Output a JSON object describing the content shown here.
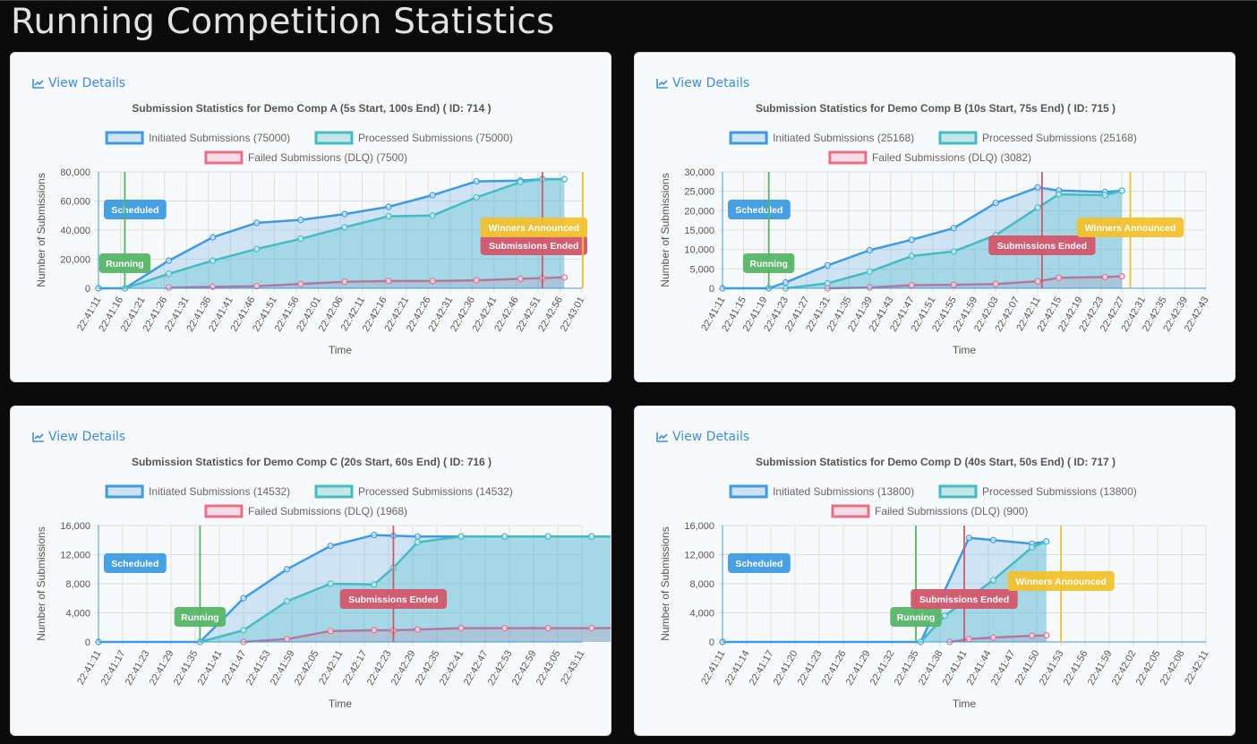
{
  "page": {
    "title": "Running Competition Statistics"
  },
  "colors": {
    "initiated": "#3d9be3",
    "initiated_fill": "rgba(61,155,227,0.22)",
    "processed": "#45bcc2",
    "processed_fill": "rgba(69,188,194,0.30)",
    "failed": "#e86f8a",
    "failed_line": "#b07aa0",
    "scheduled": "#3d9be3",
    "running": "#56b668",
    "ended": "#d2566a",
    "announced": "#f2c22e",
    "grid": "#dedede"
  },
  "view_details_label": "View Details",
  "chart_data": [
    {
      "type": "line",
      "title": "Submission Statistics for Demo Comp A (5s Start, 100s End) ( ID: 714 )",
      "xlabel": "Time",
      "ylabel": "Number of Submissions",
      "ylim": [
        0,
        80000
      ],
      "y_ticks": [
        "0",
        "20,000",
        "40,000",
        "60,000",
        "80,000"
      ],
      "x_ticks": [
        "22:41:11",
        "22:41:16",
        "22:41:21",
        "22:41:26",
        "22:41:31",
        "22:41:36",
        "22:41:41",
        "22:41:46",
        "22:41:51",
        "22:41:56",
        "22:42:01",
        "22:42:06",
        "22:42:11",
        "22:42:16",
        "22:42:21",
        "22:42:26",
        "22:42:31",
        "22:42:36",
        "22:42:41",
        "22:42:46",
        "22:42:51",
        "22:42:56",
        "22:43:01"
      ],
      "legend": [
        "Initiated Submissions (75000)",
        "Processed Submissions (75000)",
        "Failed Submissions (DLQ) (7500)"
      ],
      "series": [
        {
          "name": "Initiated Submissions (75000)",
          "x": [
            0,
            6,
            16,
            26,
            36,
            46,
            56,
            66,
            76,
            86,
            96,
            101,
            106
          ],
          "y": [
            0,
            0,
            19000,
            35000,
            45000,
            47000,
            51000,
            56000,
            64000,
            73500,
            74000,
            75000,
            75000
          ]
        },
        {
          "name": "Processed Submissions (75000)",
          "x": [
            6,
            16,
            26,
            36,
            46,
            56,
            66,
            76,
            86,
            96,
            101,
            106
          ],
          "y": [
            0,
            10000,
            19000,
            27000,
            34000,
            42000,
            49500,
            50000,
            62500,
            73000,
            75000,
            75000
          ]
        },
        {
          "name": "Failed Submissions (DLQ) (7500)",
          "x": [
            16,
            26,
            36,
            46,
            56,
            66,
            76,
            86,
            96,
            101,
            106
          ],
          "y": [
            500,
            1000,
            1500,
            3000,
            4500,
            5000,
            5000,
            5500,
            6500,
            7000,
            7500
          ]
        }
      ],
      "markers": [
        {
          "label": "Scheduled",
          "x": 0,
          "kind": "scheduled",
          "line": false
        },
        {
          "label": "Running",
          "x": 6,
          "kind": "running",
          "line": true
        },
        {
          "label": "Submissions Ended",
          "x": 101,
          "kind": "ended",
          "line": true
        },
        {
          "label": "Winners Announced",
          "x": 111,
          "kind": "announced",
          "line": true
        }
      ]
    },
    {
      "type": "line",
      "title": "Submission Statistics for Demo Comp B (10s Start, 75s End) ( ID: 715 )",
      "xlabel": "Time",
      "ylabel": "Number of Submissions",
      "ylim": [
        0,
        30000
      ],
      "y_ticks": [
        "0",
        "5,000",
        "10,000",
        "15,000",
        "20,000",
        "25,000",
        "30,000"
      ],
      "x_ticks": [
        "22:41:11",
        "22:41:15",
        "22:41:19",
        "22:41:23",
        "22:41:27",
        "22:41:31",
        "22:41:35",
        "22:41:39",
        "22:41:43",
        "22:41:47",
        "22:41:51",
        "22:41:55",
        "22:41:59",
        "22:42:03",
        "22:42:07",
        "22:42:11",
        "22:42:15",
        "22:42:19",
        "22:42:23",
        "22:42:27",
        "22:42:31",
        "22:42:35",
        "22:42:39",
        "22:42:43"
      ],
      "legend": [
        "Initiated Submissions (25168)",
        "Processed Submissions (25168)",
        "Failed Submissions (DLQ) (3082)"
      ],
      "series": [
        {
          "name": "Initiated Submissions (25168)",
          "x": [
            0,
            11,
            15,
            25,
            35,
            45,
            55,
            65,
            75,
            80,
            91,
            95
          ],
          "y": [
            0,
            0,
            1500,
            5900,
            9800,
            12500,
            15500,
            22000,
            26000,
            25200,
            24800,
            25168
          ]
        },
        {
          "name": "Processed Submissions (25168)",
          "x": [
            15,
            25,
            35,
            45,
            55,
            65,
            75,
            80,
            91,
            95
          ],
          "y": [
            0,
            1300,
            4300,
            8300,
            9500,
            13700,
            20800,
            24200,
            24000,
            25168
          ]
        },
        {
          "name": "Failed Submissions (DLQ) (3082)",
          "x": [
            25,
            35,
            45,
            55,
            65,
            75,
            80,
            91,
            95
          ],
          "y": [
            0,
            200,
            800,
            900,
            1100,
            1800,
            2700,
            2900,
            3082
          ]
        }
      ],
      "markers": [
        {
          "label": "Scheduled",
          "x": 0,
          "kind": "scheduled",
          "line": false
        },
        {
          "label": "Running",
          "x": 11,
          "kind": "running",
          "line": true
        },
        {
          "label": "Submissions Ended",
          "x": 76,
          "kind": "ended",
          "line": true
        },
        {
          "label": "Winners Announced",
          "x": 97,
          "kind": "announced",
          "line": true
        }
      ]
    },
    {
      "type": "line",
      "title": "Submission Statistics for Demo Comp C (20s Start, 60s End) ( ID: 716 )",
      "xlabel": "Time",
      "ylabel": "Number of Submissions",
      "ylim": [
        0,
        16000
      ],
      "y_ticks": [
        "0",
        "4,000",
        "8,000",
        "12,000",
        "16,000"
      ],
      "x_ticks": [
        "22:41:11",
        "22:41:17",
        "22:41:23",
        "22:41:29",
        "22:41:35",
        "22:41:41",
        "22:41:47",
        "22:41:53",
        "22:41:59",
        "22:42:05",
        "22:42:11",
        "22:42:17",
        "22:42:23",
        "22:42:29",
        "22:42:35",
        "22:42:41",
        "22:42:47",
        "22:42:53",
        "22:42:59",
        "22:43:05",
        "22:43:11"
      ],
      "legend": [
        "Initiated Submissions (14532)",
        "Processed Submissions (14532)",
        "Failed Submissions (DLQ) (1968)"
      ],
      "series": [
        {
          "name": "Initiated Submissions (14532)",
          "x": [
            0,
            21,
            30,
            39,
            48,
            57,
            61,
            66,
            75,
            84,
            93,
            102,
            111,
            120
          ],
          "y": [
            0,
            0,
            6000,
            10000,
            13200,
            14700,
            14600,
            14500,
            14500,
            14500,
            14500,
            14500,
            14500,
            14500
          ]
        },
        {
          "name": "Processed Submissions (14532)",
          "x": [
            21,
            30,
            39,
            48,
            57,
            61,
            66,
            75,
            84,
            93,
            102,
            111,
            120
          ],
          "y": [
            0,
            1600,
            5600,
            8000,
            7900,
            10200,
            13700,
            14500,
            14500,
            14500,
            14500,
            14500,
            14500
          ]
        },
        {
          "name": "Failed Submissions (DLQ) (1968)",
          "x": [
            30,
            39,
            48,
            57,
            61,
            66,
            75,
            84,
            93,
            102,
            111,
            120
          ],
          "y": [
            0,
            400,
            1500,
            1600,
            1600,
            1700,
            1900,
            1900,
            1900,
            1900,
            1968,
            1968
          ]
        }
      ],
      "markers": [
        {
          "label": "Scheduled",
          "x": 0,
          "kind": "scheduled",
          "line": false
        },
        {
          "label": "Running",
          "x": 21,
          "kind": "running",
          "line": true
        },
        {
          "label": "Submissions Ended",
          "x": 61,
          "kind": "ended",
          "line": true
        }
      ]
    },
    {
      "type": "line",
      "title": "Submission Statistics for Demo Comp D (40s Start, 50s End) ( ID: 717 )",
      "xlabel": "Time",
      "ylabel": "Number of Submissions",
      "ylim": [
        0,
        16000
      ],
      "y_ticks": [
        "0",
        "4,000",
        "8,000",
        "12,000",
        "16,000"
      ],
      "x_ticks": [
        "22:41:11",
        "22:41:14",
        "22:41:17",
        "22:41:20",
        "22:41:23",
        "22:41:26",
        "22:41:29",
        "22:41:32",
        "22:41:35",
        "22:41:38",
        "22:41:41",
        "22:41:44",
        "22:41:47",
        "22:41:50",
        "22:41:53",
        "22:41:56",
        "22:41:59",
        "22:42:02",
        "22:42:05",
        "22:42:08",
        "22:42:11"
      ],
      "legend": [
        "Initiated Submissions (13800)",
        "Processed Submissions (13800)",
        "Failed Submissions (DLQ) (900)"
      ],
      "series": [
        {
          "name": "Initiated Submissions (13800)",
          "x": [
            0,
            41,
            51,
            56,
            64,
            67
          ],
          "y": [
            0,
            0,
            14300,
            14000,
            13500,
            13800
          ]
        },
        {
          "name": "Processed Submissions (13800)",
          "x": [
            41,
            46,
            56,
            64,
            67
          ],
          "y": [
            0,
            3600,
            8500,
            13000,
            13800
          ]
        },
        {
          "name": "Failed Submissions (DLQ) (900)",
          "x": [
            47,
            51,
            56,
            64,
            67
          ],
          "y": [
            0,
            400,
            600,
            850,
            900
          ]
        }
      ],
      "markers": [
        {
          "label": "Scheduled",
          "x": 0,
          "kind": "scheduled",
          "line": false
        },
        {
          "label": "Running",
          "x": 40,
          "kind": "running",
          "line": true
        },
        {
          "label": "Submissions Ended",
          "x": 50,
          "kind": "ended",
          "line": true
        },
        {
          "label": "Winners Announced",
          "x": 70,
          "kind": "announced",
          "line": true
        }
      ]
    }
  ]
}
